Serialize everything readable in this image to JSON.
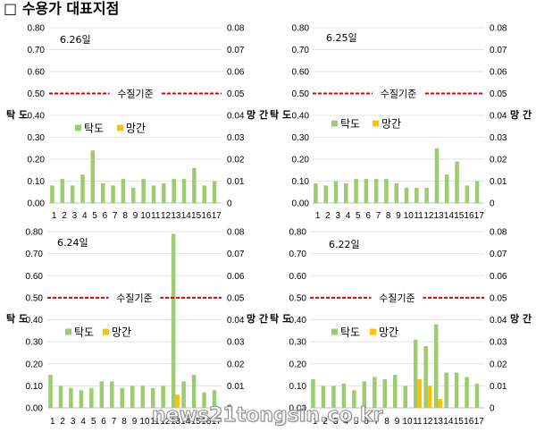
{
  "page_title": "□ 수용가 대표지점",
  "watermark": "news21tongsin.co.kr",
  "colors": {
    "turbidity": "#9DCB6F",
    "manganese": "#FFC000",
    "reference": "#E00000",
    "grid": "#E3E3E3",
    "axis": "#BFBFBF"
  },
  "chart_data": [
    {
      "type": "bar",
      "title": "6.26일",
      "categories": [
        "1",
        "2",
        "3",
        "4",
        "5",
        "6",
        "7",
        "8",
        "9",
        "10",
        "11",
        "12",
        "13",
        "14",
        "15",
        "16",
        "17"
      ],
      "series": [
        {
          "name": "탁도",
          "axis": "left",
          "values": [
            0.08,
            0.11,
            0.08,
            0.13,
            0.24,
            0.09,
            0.08,
            0.11,
            0.07,
            0.11,
            0.08,
            0.09,
            0.11,
            0.11,
            0.16,
            0.08,
            0.1
          ]
        },
        {
          "name": "망간",
          "axis": "right",
          "values": [
            0,
            0,
            0,
            0,
            0,
            0,
            0,
            0,
            0,
            0,
            0,
            0,
            0,
            0,
            0,
            0,
            0
          ]
        }
      ],
      "ylabel": "탁 도",
      "y2label": "망 간",
      "ylim": [
        0,
        0.8
      ],
      "y2lim": [
        0,
        0.08
      ],
      "yticks": [
        "0.00",
        "0.10",
        "0.20",
        "0.30",
        "0.40",
        "0.50",
        "0.60",
        "0.70",
        "0.80"
      ],
      "y2ticks": [
        "0",
        "0.01",
        "0.02",
        "0.03",
        "0.04",
        "0.05",
        "0.06",
        "0.07",
        "0.08"
      ],
      "reference_line": {
        "value": 0.5,
        "label": "수질기준"
      },
      "grid": true,
      "legend_position": "inside-left"
    },
    {
      "type": "bar",
      "title": "6.25일",
      "categories": [
        "1",
        "2",
        "3",
        "4",
        "5",
        "6",
        "7",
        "8",
        "9",
        "10",
        "11",
        "12",
        "13",
        "14",
        "15",
        "16",
        "17"
      ],
      "series": [
        {
          "name": "탁도",
          "axis": "left",
          "values": [
            0.09,
            0.08,
            0.1,
            0.09,
            0.11,
            0.11,
            0.11,
            0.11,
            0.09,
            0.07,
            0.07,
            0.07,
            0.25,
            0.13,
            0.19,
            0.08,
            0.1
          ]
        },
        {
          "name": "망간",
          "axis": "right",
          "values": [
            0,
            0,
            0,
            0,
            0,
            0,
            0,
            0,
            0,
            0,
            0,
            0,
            0,
            0,
            0,
            0,
            0
          ]
        }
      ],
      "ylabel": "탁 도",
      "y2label": "망 간",
      "ylim": [
        0,
        0.8
      ],
      "y2lim": [
        0,
        0.08
      ],
      "yticks": [
        "0.00",
        "0.10",
        "0.20",
        "0.30",
        "0.40",
        "0.50",
        "0.60",
        "0.70",
        "0.80"
      ],
      "y2ticks": [
        "0",
        "0.01",
        "0.02",
        "0.03",
        "0.04",
        "0.05",
        "0.06",
        "0.07",
        "0.08"
      ],
      "reference_line": {
        "value": 0.5,
        "label": "수질기준"
      },
      "grid": true,
      "legend_position": "inside-left"
    },
    {
      "type": "bar",
      "title": "6.24일",
      "categories": [
        "1",
        "2",
        "3",
        "4",
        "5",
        "6",
        "7",
        "8",
        "9",
        "10",
        "11",
        "12",
        "13",
        "14",
        "15",
        "16",
        "17"
      ],
      "series": [
        {
          "name": "탁도",
          "axis": "left",
          "values": [
            0.15,
            0.1,
            0.09,
            0.08,
            0.09,
            0.12,
            0.12,
            0.09,
            0.1,
            0.1,
            0.09,
            0.1,
            0.79,
            0.12,
            0.15,
            0.07,
            0.08
          ]
        },
        {
          "name": "망간",
          "axis": "right",
          "values": [
            0,
            0,
            0,
            0,
            0,
            0,
            0,
            0,
            0,
            0,
            0,
            0,
            0.006,
            0,
            0,
            0,
            0
          ]
        }
      ],
      "ylabel": "탁 도",
      "y2label": "망 간",
      "ylim": [
        0,
        0.8
      ],
      "y2lim": [
        0,
        0.08
      ],
      "yticks": [
        "0.00",
        "0.10",
        "0.20",
        "0.30",
        "0.40",
        "0.50",
        "0.60",
        "0.70",
        "0.80"
      ],
      "y2ticks": [
        "0",
        "0.01",
        "0.02",
        "0.03",
        "0.04",
        "0.05",
        "0.06",
        "0.07",
        "0.08"
      ],
      "reference_line": {
        "value": 0.5,
        "label": "수질기준"
      },
      "grid": true,
      "legend_position": "inside-left"
    },
    {
      "type": "bar",
      "title": "6.22일",
      "categories": [
        "1",
        "2",
        "3",
        "4",
        "5",
        "6",
        "7",
        "8",
        "9",
        "10",
        "11",
        "12",
        "13",
        "14",
        "15",
        "16",
        "17"
      ],
      "series": [
        {
          "name": "탁도",
          "axis": "left",
          "values": [
            0.13,
            0.1,
            0.1,
            0.11,
            0.08,
            0.12,
            0.14,
            0.13,
            0.15,
            0.1,
            0.31,
            0.28,
            0.38,
            0.16,
            0.16,
            0.14,
            0.11
          ]
        },
        {
          "name": "망간",
          "axis": "right",
          "values": [
            0,
            0,
            0,
            0,
            0,
            0,
            0,
            0,
            0,
            0,
            0.013,
            0.01,
            0.004,
            0,
            0,
            0,
            0
          ]
        }
      ],
      "ylabel": "탁 도",
      "y2label": "망 간",
      "ylim": [
        0,
        0.8
      ],
      "y2lim": [
        0,
        0.08
      ],
      "yticks": [
        "0.00",
        "0.10",
        "0.20",
        "0.30",
        "0.40",
        "0.50",
        "0.60",
        "0.70",
        "0.80"
      ],
      "y2ticks": [
        "0",
        "0.01",
        "0.02",
        "0.03",
        "0.04",
        "0.05",
        "0.06",
        "0.07",
        "0.08"
      ],
      "reference_line": {
        "value": 0.5,
        "label": "수질기준"
      },
      "grid": true,
      "legend_position": "inside-left"
    }
  ]
}
